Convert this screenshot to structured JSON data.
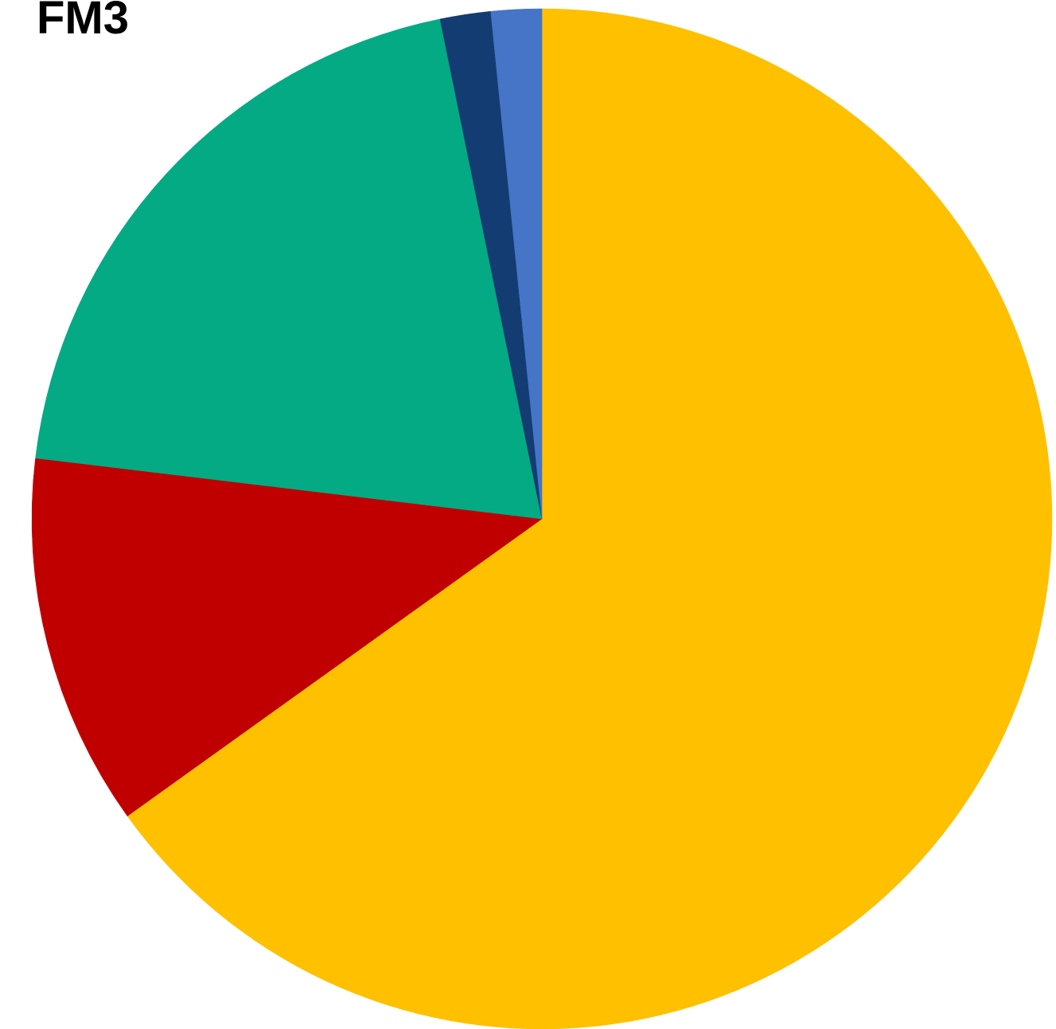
{
  "chart_data": {
    "type": "pie",
    "title": "FM3",
    "values": [
      65.1,
      11.8,
      19.9,
      1.6,
      1.6
    ],
    "colors": [
      "#ffc000",
      "#c00000",
      "#03aa84",
      "#123c72",
      "#4674c6"
    ],
    "start_angle": 0,
    "direction": "clockwise"
  }
}
